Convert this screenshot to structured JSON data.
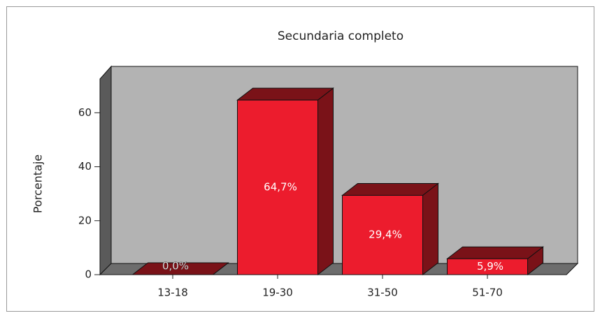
{
  "chart_data": {
    "type": "bar3d",
    "title": "Secundaria completo",
    "y_label": "Porcentaje",
    "categories": [
      "13-18",
      "19-30",
      "31-50",
      "51-70"
    ],
    "values": [
      0,
      64.7,
      29.4,
      5.9
    ],
    "value_labels": [
      "0,0%",
      "64,7%",
      "29,4%",
      "5,9%"
    ],
    "color": "#ec1c2d",
    "side_color": "#7a1218",
    "ylim": [
      0,
      72
    ],
    "yticks": [
      0,
      20,
      40,
      60
    ]
  }
}
